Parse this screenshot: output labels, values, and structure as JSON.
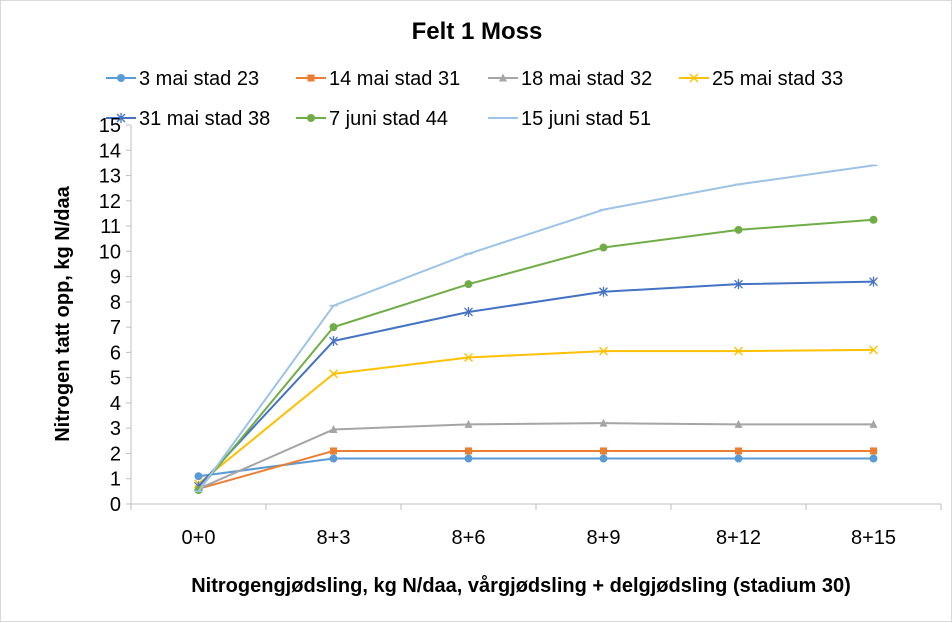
{
  "chart_data": {
    "type": "line",
    "title": "Felt 1 Moss",
    "xlabel": "Nitrogengjødsling, kg N/daa, vårgjødsling + delgjødsling (stadium 30)",
    "ylabel": "Nitrogen tatt opp, kg N/daa",
    "categories": [
      "0+0",
      "8+3",
      "8+6",
      "8+9",
      "8+12",
      "8+15"
    ],
    "ylim": [
      0,
      15
    ],
    "yticks": [
      0,
      1,
      2,
      3,
      4,
      5,
      6,
      7,
      8,
      9,
      10,
      11,
      12,
      13,
      14,
      15
    ],
    "grid": false,
    "legend_position": "top",
    "series": [
      {
        "name": "3 mai stad 23",
        "color": "#5b9bd5",
        "marker": "circle",
        "values": [
          1.1,
          1.8,
          1.8,
          1.8,
          1.8,
          1.8
        ]
      },
      {
        "name": "14 mai stad 31",
        "color": "#ed7d31",
        "marker": "square",
        "values": [
          0.6,
          2.1,
          2.1,
          2.1,
          2.1,
          2.1
        ]
      },
      {
        "name": "18 mai stad 32",
        "color": "#a5a5a5",
        "marker": "triangle",
        "values": [
          0.6,
          2.95,
          3.15,
          3.2,
          3.15,
          3.15
        ]
      },
      {
        "name": "25 mai stad 33",
        "color": "#ffc000",
        "marker": "x",
        "values": [
          0.8,
          5.15,
          5.8,
          6.05,
          6.05,
          6.1
        ]
      },
      {
        "name": "31 mai stad 38",
        "color": "#4472c4",
        "marker": "star",
        "values": [
          0.7,
          6.45,
          7.6,
          8.4,
          8.7,
          8.8
        ]
      },
      {
        "name": "7 juni stad 44",
        "color": "#70ad47",
        "marker": "circle",
        "values": [
          0.55,
          7.0,
          8.7,
          10.15,
          10.85,
          11.25
        ]
      },
      {
        "name": "15 juni stad 51",
        "color": "#9dc3e6",
        "marker": "dash",
        "values": [
          0.5,
          7.85,
          9.9,
          11.65,
          12.65,
          13.4
        ]
      }
    ]
  }
}
